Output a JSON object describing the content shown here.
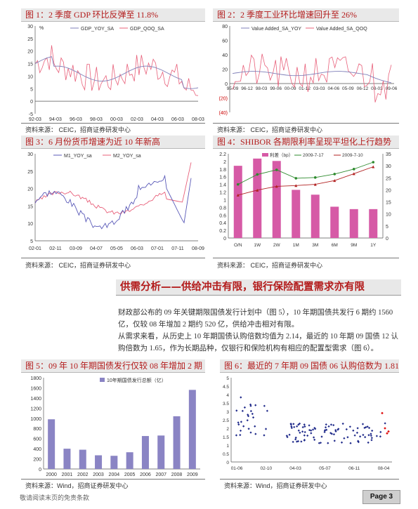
{
  "figures": [
    {
      "title": "图 1：2 季度 GDP 环比反弹至 11.8%",
      "source": "资料来源：  CEIC，招商证券研发中心",
      "chart_data": {
        "type": "line",
        "unit": "%",
        "x_ticks": [
          "92-03",
          "94-03",
          "96-03",
          "98-03",
          "00-03",
          "02-03",
          "04-03",
          "06-03",
          "08-03"
        ],
        "y_ticks": [
          "30",
          "25",
          "20",
          "15",
          "10",
          "5",
          "0",
          "-5"
        ],
        "ylim": [
          -5,
          30
        ],
        "series": [
          {
            "name": "GDP_YOY_SA",
            "color": "#7f7fb8"
          },
          {
            "name": "GDP_QOQ_SA",
            "color": "#e8607a"
          }
        ]
      }
    },
    {
      "title": "图 2：2 季度工业环比增速回升至 26%",
      "source": "资料来源：  CEIC，招商证券研发中心",
      "chart_data": {
        "type": "line",
        "x_ticks": [
          "95-09",
          "96-12",
          "98-03",
          "99-06",
          "00-09",
          "01-12",
          "03-03",
          "04-06",
          "05-09",
          "06-12",
          "08-03",
          "09-06"
        ],
        "y_ticks": [
          "80",
          "60",
          "40",
          "20",
          "0",
          "(20)",
          "(40)"
        ],
        "ylim": [
          -40,
          80
        ],
        "series": [
          {
            "name": "Value Added_SA_YOY",
            "color": "#7f7fb8"
          },
          {
            "name": "Value Added_SA_QOQ",
            "color": "#e8607a"
          }
        ]
      }
    },
    {
      "title": "图 3：6 月份货币增速为近 10 年新高",
      "source": "资料来源：  CEIC，招商证券研发中心",
      "chart_data": {
        "type": "line",
        "x_ticks": [
          "02-01",
          "02-11",
          "03-09",
          "04-07",
          "05-05",
          "06-03",
          "07-01",
          "07-11",
          "08-09"
        ],
        "y_ticks": [
          "30",
          "25",
          "20",
          "15",
          "10",
          "5"
        ],
        "ylim": [
          5,
          30
        ],
        "series": [
          {
            "name": "M1_YOY_sa",
            "color": "#5a5ab8"
          },
          {
            "name": "M2_YOY_sa",
            "color": "#e8607a"
          }
        ]
      }
    },
    {
      "title": "图 4：SHIBOR 各期限利率呈现平坦化上行趋势",
      "source": "资料来源：  CEIC，招商证券研发中心",
      "chart_data": {
        "type": "bar+line",
        "categories": [
          "O/N",
          "1W",
          "2W",
          "1M",
          "3M",
          "6M",
          "9M",
          "1Y"
        ],
        "bar_series": {
          "name": "利差（bp）",
          "color": "#d65aa6",
          "values": [
            30,
            33,
            32,
            20,
            18,
            13,
            12,
            12
          ]
        },
        "line_series": [
          {
            "name": "2009-7-17",
            "color": "#2e8b2e",
            "values": [
              1.4,
              1.66,
              1.78,
              1.56,
              1.58,
              1.67,
              1.8,
              1.98
            ]
          },
          {
            "name": "2009-7-10",
            "color": "#b22222",
            "values": [
              1.12,
              1.25,
              1.35,
              1.37,
              1.4,
              1.5,
              1.68,
              1.86
            ]
          }
        ],
        "y_left_ticks": [
          "2.2",
          "2",
          "1.8",
          "1.6",
          "1.4",
          "1.2",
          "1",
          "0.8",
          "0.6",
          "0.4",
          "0.2",
          "0"
        ],
        "y_right_ticks": [
          "35",
          "30",
          "25",
          "20",
          "15",
          "10",
          "5",
          "0"
        ],
        "ylim_left": [
          0,
          2.2
        ],
        "ylim_right": [
          0,
          35
        ]
      }
    },
    {
      "title": "图 5：09 年 10 年期国债发行仅较 08 年增加 2 期",
      "source": "资料来源：Wind，招商证券研发中心",
      "chart_data": {
        "type": "bar",
        "legend": "10年期国债发行总额（亿）",
        "color": "#8a84c4",
        "categories": [
          "2000",
          "2001",
          "2002",
          "2003",
          "2004",
          "2005",
          "2006",
          "2007",
          "2008",
          "2009"
        ],
        "values": [
          980,
          400,
          380,
          270,
          260,
          330,
          650,
          660,
          1040,
          1560
        ],
        "y_ticks": [
          "1800",
          "1600",
          "1400",
          "1200",
          "1000",
          "800",
          "600",
          "400",
          "200",
          "0"
        ],
        "ylim": [
          0,
          1800
        ]
      }
    },
    {
      "title": "图 6：最近的 7 年期 09 国债 06 认购倍数为 1.81",
      "source": "资料来源：Wind，招商证券研发中心",
      "chart_data": {
        "type": "scatter",
        "color": "#1f2a8a",
        "highlight_color": "#e01010",
        "x_ticks": [
          "01-06",
          "02-10",
          "04-03",
          "05-07",
          "06-11",
          "08-04"
        ],
        "y_ticks": [
          "5",
          "4.5",
          "4",
          "3.5",
          "3",
          "2.5",
          "2",
          "1.5",
          "1",
          "0.5",
          "0"
        ],
        "ylim": [
          0,
          5
        ]
      }
    }
  ],
  "banner": "供需分析——供给冲击有限，银行保险配置需求亦有限",
  "paragraphs": [
    "财政部公布的 09 年关键期限国债发行计划中（图 5），10 年期国债共发行 6 期约 1560 亿，仅较 08 年增加 2 期约 520 亿，供给冲击相对有限。",
    "从需求来看，从历史上 10 年期国债认购倍数均值为 2.14，最近的 10 年期 09 国债 12 认购倍数为 1.65，作为长期品种，仅银行和保险机构有相应的配置型需求（图 6）。"
  ],
  "footer": "敬请阅读末页的免责条款",
  "page_label": "Page 3"
}
